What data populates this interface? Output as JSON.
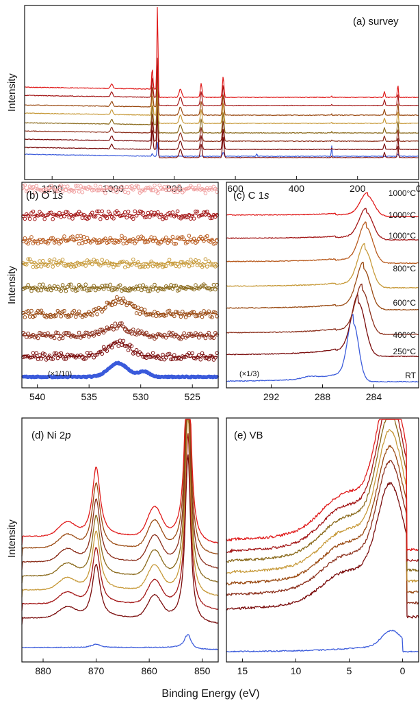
{
  "figure": {
    "ylabel": "Intensity",
    "xlabel": "Binding Energy (eV)"
  },
  "colors": [
    "#3b5bdb",
    "#7a0c0c",
    "#8b2e1a",
    "#9a4a12",
    "#8a6a1c",
    "#c79a3a",
    "#b85a1d",
    "#a31616",
    "#e01b1b"
  ],
  "chart_data": [
    {
      "id": "survey",
      "type": "line",
      "label": "(a) survey",
      "xlim": [
        1290,
        0
      ],
      "xticks": [
        1200,
        1000,
        800,
        600,
        400,
        200,
        0
      ],
      "ylabel": "Intensity",
      "series_count": 8,
      "peaks_eV": [
        1005,
        872,
        855,
        780,
        712,
        640,
        530,
        285,
        112,
        68
      ]
    },
    {
      "id": "o1s",
      "type": "scatter",
      "label": "(b) O 1s",
      "xlim": [
        541.5,
        522.5
      ],
      "xticks": [
        540,
        535,
        530,
        525
      ],
      "ylabel": "Intensity",
      "annotation": "(×1/10)",
      "series_count": 8,
      "peak_eV": 532.2
    },
    {
      "id": "c1s",
      "type": "line",
      "label": "(c) C 1s",
      "xlim": [
        295.5,
        280.5
      ],
      "xticks": [
        292,
        288,
        284
      ],
      "annotation": "(×1/3)",
      "temperatures": [
        "1000°C",
        "1000°C",
        "1000°C",
        "800°C",
        "600°C",
        "400°C",
        "250°C",
        "RT"
      ],
      "series_count": 8,
      "peak_eV": 284.6
    },
    {
      "id": "ni2p",
      "type": "line",
      "label": "(d) Ni 2p",
      "xlim": [
        884,
        847
      ],
      "xticks": [
        880,
        870,
        860,
        850
      ],
      "ylabel": "Intensity",
      "series_count": 8,
      "peaks_eV": [
        870.0,
        859.0,
        852.7
      ]
    },
    {
      "id": "vb",
      "type": "line",
      "label": "(e) VB",
      "xlim": [
        16.5,
        -1.5
      ],
      "xticks": [
        15,
        10,
        5,
        0
      ],
      "series_count": 8,
      "peak_eV": 1.0
    }
  ]
}
